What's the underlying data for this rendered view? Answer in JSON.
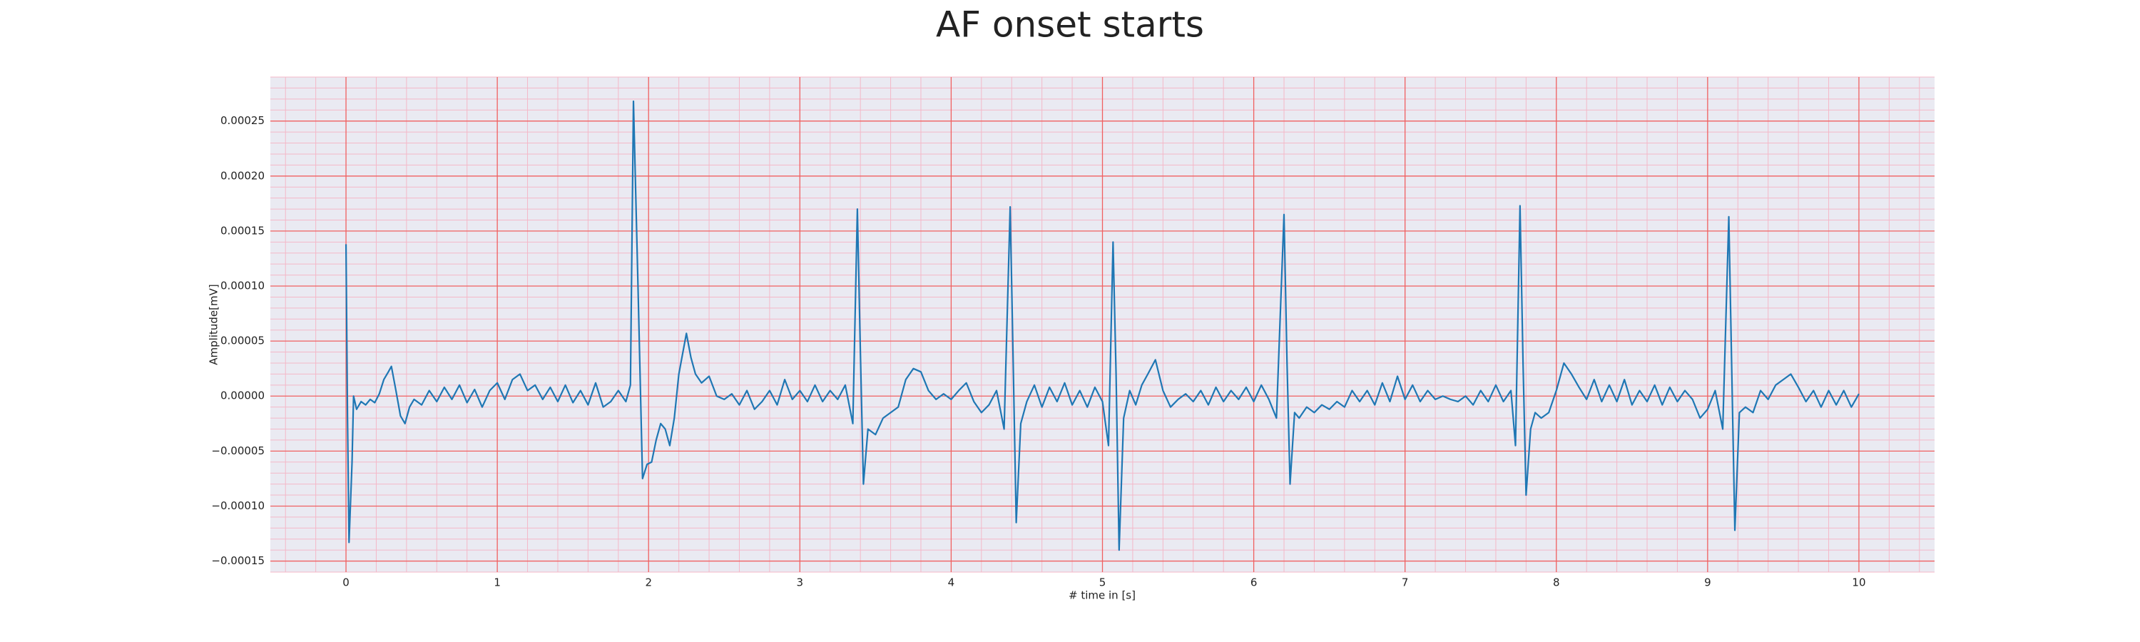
{
  "chart_data": {
    "type": "line",
    "title": "AF onset starts",
    "xlabel": "# time in [s]",
    "ylabel": "Amplitude[mV]",
    "color": "#1f77b4",
    "grid": true,
    "xlim": [
      -0.5,
      10.5
    ],
    "ylim": [
      -0.00016,
      0.00029
    ],
    "xticks": [
      0,
      1,
      2,
      3,
      4,
      5,
      6,
      7,
      8,
      9,
      10
    ],
    "yticks": [
      {
        "value": -0.00015,
        "label": "−0.00015"
      },
      {
        "value": -0.0001,
        "label": "−0.00010"
      },
      {
        "value": -5e-05,
        "label": "−0.00005"
      },
      {
        "value": 0,
        "label": "0.00000"
      },
      5e-05,
      {
        "value": 0.0001,
        "label": "0.00010"
      },
      0.00015,
      {
        "value": 0.0002,
        "label": "0.00020"
      },
      0.00025
    ],
    "x": [
      0.0,
      0.01,
      0.02,
      0.04,
      0.05,
      0.07,
      0.1,
      0.13,
      0.16,
      0.19,
      0.22,
      0.25,
      0.28,
      0.3,
      0.33,
      0.36,
      0.39,
      0.42,
      0.45,
      0.5,
      0.55,
      0.6,
      0.65,
      0.7,
      0.75,
      0.8,
      0.85,
      0.9,
      0.95,
      1.0,
      1.05,
      1.1,
      1.15,
      1.2,
      1.25,
      1.3,
      1.35,
      1.4,
      1.45,
      1.5,
      1.55,
      1.6,
      1.65,
      1.7,
      1.75,
      1.8,
      1.85,
      1.88,
      1.9,
      1.93,
      1.96,
      1.99,
      2.02,
      2.05,
      2.08,
      2.11,
      2.14,
      2.17,
      2.2,
      2.25,
      2.28,
      2.31,
      2.35,
      2.4,
      2.45,
      2.5,
      2.55,
      2.6,
      2.65,
      2.7,
      2.75,
      2.8,
      2.85,
      2.9,
      2.95,
      3.0,
      3.05,
      3.1,
      3.15,
      3.2,
      3.25,
      3.3,
      3.35,
      3.38,
      3.4,
      3.42,
      3.45,
      3.5,
      3.55,
      3.6,
      3.65,
      3.7,
      3.75,
      3.8,
      3.85,
      3.9,
      3.95,
      4.0,
      4.05,
      4.1,
      4.15,
      4.2,
      4.25,
      4.3,
      4.35,
      4.39,
      4.41,
      4.43,
      4.46,
      4.5,
      4.55,
      4.6,
      4.65,
      4.7,
      4.75,
      4.8,
      4.85,
      4.9,
      4.95,
      5.0,
      5.04,
      5.07,
      5.09,
      5.11,
      5.14,
      5.18,
      5.22,
      5.26,
      5.3,
      5.35,
      5.4,
      5.45,
      5.5,
      5.55,
      5.6,
      5.65,
      5.7,
      5.75,
      5.8,
      5.85,
      5.9,
      5.95,
      6.0,
      6.05,
      6.1,
      6.15,
      6.2,
      6.22,
      6.24,
      6.27,
      6.3,
      6.35,
      6.4,
      6.45,
      6.5,
      6.55,
      6.6,
      6.65,
      6.7,
      6.75,
      6.8,
      6.85,
      6.9,
      6.95,
      7.0,
      7.05,
      7.1,
      7.15,
      7.2,
      7.25,
      7.3,
      7.35,
      7.4,
      7.45,
      7.5,
      7.55,
      7.6,
      7.65,
      7.7,
      7.73,
      7.76,
      7.78,
      7.8,
      7.83,
      7.86,
      7.9,
      7.95,
      8.0,
      8.05,
      8.1,
      8.15,
      8.2,
      8.25,
      8.3,
      8.35,
      8.4,
      8.45,
      8.5,
      8.55,
      8.6,
      8.65,
      8.7,
      8.75,
      8.8,
      8.85,
      8.9,
      8.95,
      9.0,
      9.05,
      9.1,
      9.14,
      9.16,
      9.18,
      9.21,
      9.25,
      9.3,
      9.35,
      9.4,
      9.45,
      9.5,
      9.55,
      9.6,
      9.65,
      9.7,
      9.75,
      9.8,
      9.85,
      9.9,
      9.95,
      10.0
    ],
    "values": [
      0.000138,
      -2e-05,
      -0.000133,
      -6e-05,
      0,
      -1.2e-05,
      -5e-06,
      -8e-06,
      -3e-06,
      -6e-06,
      2e-06,
      1.5e-05,
      2.2e-05,
      2.7e-05,
      5e-06,
      -1.8e-05,
      -2.5e-05,
      -1e-05,
      -3e-06,
      -8e-06,
      5e-06,
      -5e-06,
      8e-06,
      -3e-06,
      1e-05,
      -6e-06,
      6e-06,
      -1e-05,
      5e-06,
      1.2e-05,
      -3e-06,
      1.5e-05,
      2e-05,
      5e-06,
      1e-05,
      -3e-06,
      8e-06,
      -5e-06,
      1e-05,
      -6e-06,
      5e-06,
      -8e-06,
      1.2e-05,
      -1e-05,
      -5e-06,
      5e-06,
      -5e-06,
      1e-05,
      0.000268,
      0.0001,
      -7.5e-05,
      -6.2e-05,
      -6e-05,
      -4e-05,
      -2.5e-05,
      -3e-05,
      -4.5e-05,
      -2e-05,
      2e-05,
      5.7e-05,
      3.5e-05,
      2e-05,
      1.2e-05,
      1.8e-05,
      0,
      -3e-06,
      2e-06,
      -8e-06,
      5e-06,
      -1.2e-05,
      -5e-06,
      5e-06,
      -8e-06,
      1.5e-05,
      -3e-06,
      5e-06,
      -5e-06,
      1e-05,
      -5e-06,
      5e-06,
      -3e-06,
      1e-05,
      -2.5e-05,
      0.00017,
      4e-05,
      -8e-05,
      -3e-05,
      -3.5e-05,
      -2e-05,
      -1.5e-05,
      -1e-05,
      1.5e-05,
      2.5e-05,
      2.2e-05,
      5e-06,
      -3e-06,
      2e-06,
      -3e-06,
      5e-06,
      1.2e-05,
      -5e-06,
      -1.5e-05,
      -8e-06,
      5e-06,
      -3e-05,
      0.000172,
      3e-05,
      -0.000115,
      -2.5e-05,
      -5e-06,
      1e-05,
      -1e-05,
      8e-06,
      -5e-06,
      1.2e-05,
      -8e-06,
      5e-06,
      -1e-05,
      8e-06,
      -5e-06,
      -4.5e-05,
      0.00014,
      2e-05,
      -0.00014,
      -2e-05,
      5e-06,
      -8e-06,
      1e-05,
      2e-05,
      3.3e-05,
      5e-06,
      -1e-05,
      -3e-06,
      2e-06,
      -5e-06,
      5e-06,
      -8e-06,
      8e-06,
      -5e-06,
      5e-06,
      -3e-06,
      8e-06,
      -5e-06,
      1e-05,
      -3e-06,
      -2e-05,
      0.000165,
      3e-05,
      -8e-05,
      -1.5e-05,
      -2e-05,
      -1e-05,
      -1.5e-05,
      -8e-06,
      -1.2e-05,
      -5e-06,
      -1e-05,
      5e-06,
      -5e-06,
      5e-06,
      -8e-06,
      1.2e-05,
      -5e-06,
      1.8e-05,
      -3e-06,
      1e-05,
      -5e-06,
      5e-06,
      -3e-06,
      0,
      -3e-06,
      -5e-06,
      0,
      -8e-06,
      5e-06,
      -5e-06,
      1e-05,
      -5e-06,
      5e-06,
      -4.5e-05,
      0.000173,
      3e-05,
      -9e-05,
      -3e-05,
      -1.5e-05,
      -2e-05,
      -1.5e-05,
      5e-06,
      3e-05,
      2e-05,
      8e-06,
      -3e-06,
      1.5e-05,
      -5e-06,
      1e-05,
      -5e-06,
      1.5e-05,
      -8e-06,
      5e-06,
      -5e-06,
      1e-05,
      -8e-06,
      8e-06,
      -5e-06,
      5e-06,
      -3e-06,
      -2e-05,
      -1.2e-05,
      5e-06,
      -3e-05,
      0.000163,
      2e-05,
      -0.000122,
      -1.5e-05,
      -1e-05,
      -1.5e-05,
      5e-06,
      -3e-06,
      1e-05,
      1.5e-05,
      2e-05,
      8e-06,
      -5e-06,
      5e-06,
      -1e-05,
      5e-06,
      -8e-06,
      5e-06,
      -1e-05,
      2e-06
    ]
  }
}
